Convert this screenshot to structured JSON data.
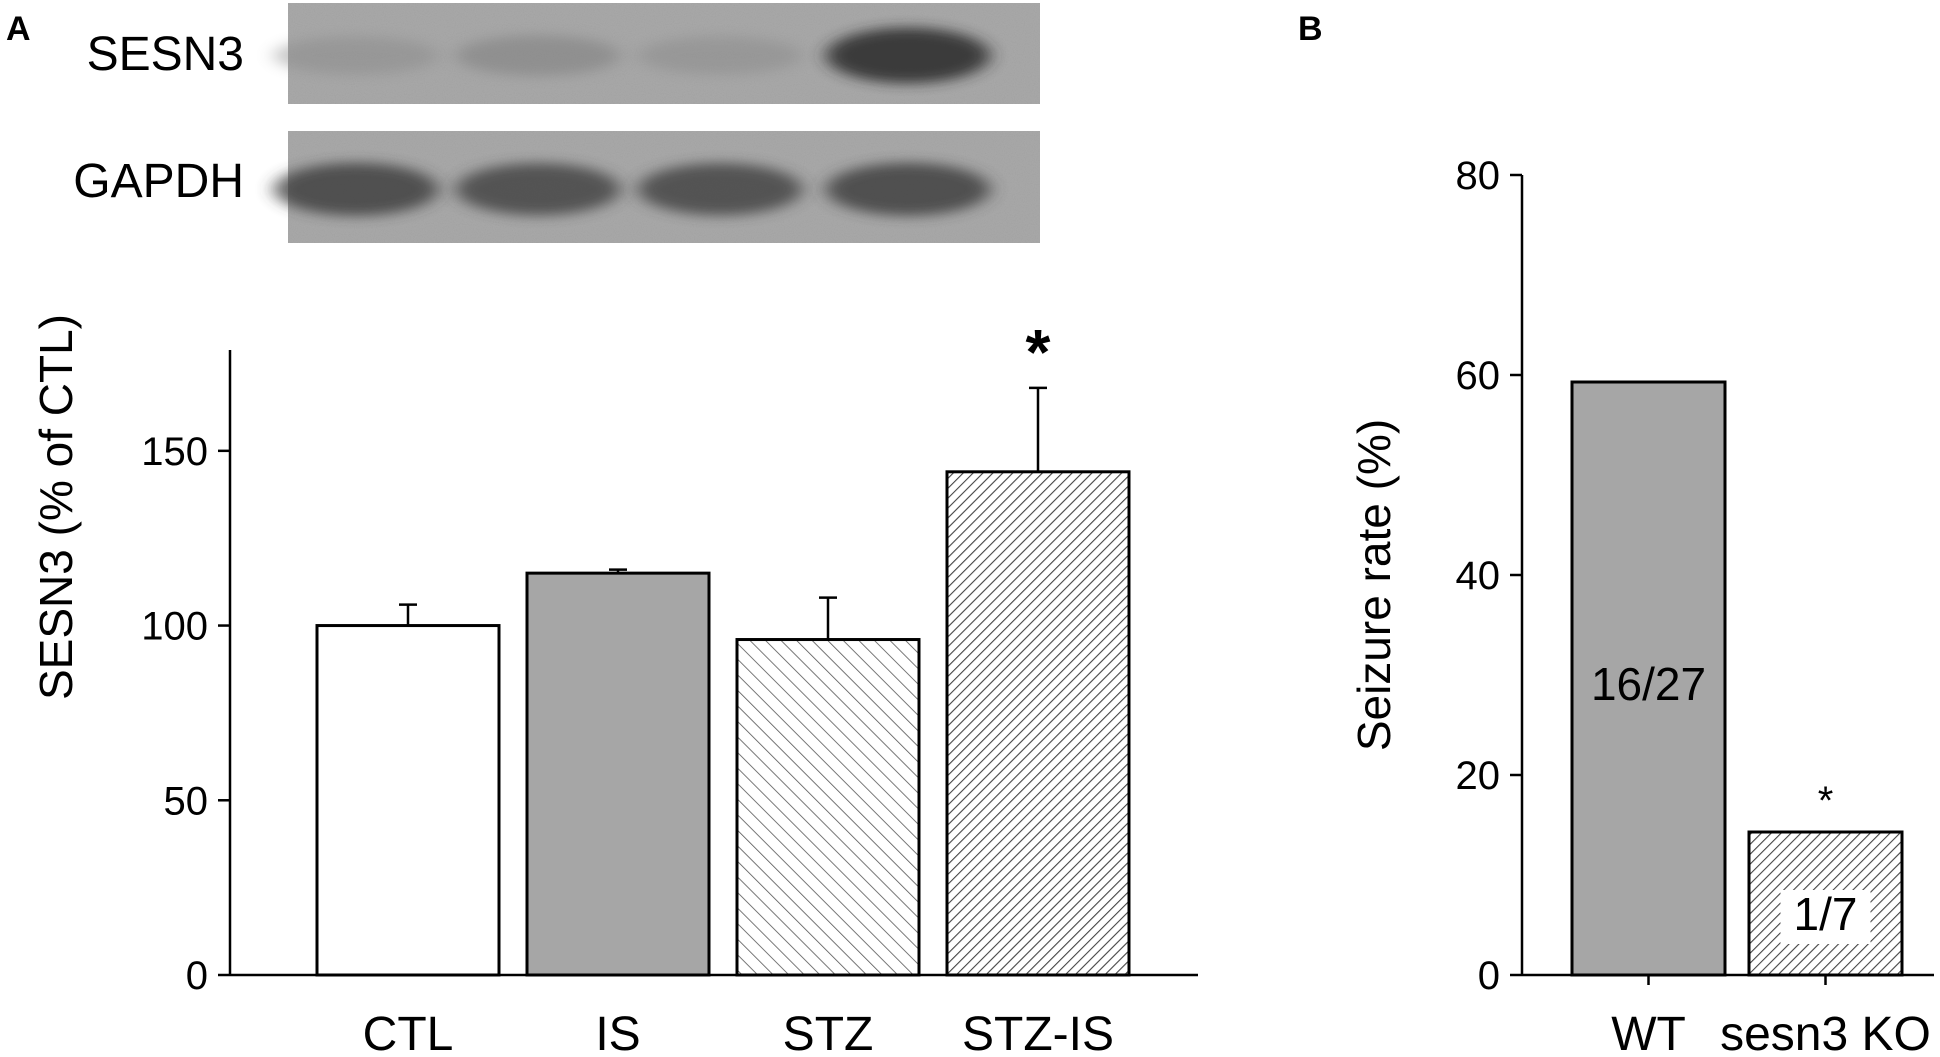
{
  "panel_a": {
    "letter": "A",
    "blot": {
      "rows": [
        {
          "label": "SESN3",
          "band_intensity": [
            0.22,
            0.3,
            0.22,
            0.85
          ]
        },
        {
          "label": "GAPDH",
          "band_intensity": [
            0.75,
            0.72,
            0.72,
            0.75
          ]
        }
      ]
    }
  },
  "panel_b": {
    "letter": "B"
  },
  "chart_data": [
    {
      "type": "bar",
      "categories": [
        "CTL",
        "IS",
        "STZ",
        "STZ-IS"
      ],
      "values": [
        100,
        115,
        96,
        144
      ],
      "errors": [
        6,
        1,
        12,
        24
      ],
      "fills": [
        "white",
        "gray",
        "sparse-hatch",
        "dense-hatch"
      ],
      "significance": [
        "",
        "",
        "",
        "*"
      ],
      "title": "",
      "xlabel": "",
      "ylabel": "SESN3 (% of CTL)",
      "ylim": [
        0,
        180
      ],
      "yticks": [
        0,
        50,
        100,
        150
      ],
      "grid": false
    },
    {
      "type": "bar",
      "categories": [
        "WT",
        "sesn3 KO"
      ],
      "values": [
        59.3,
        14.3
      ],
      "bar_labels": [
        "16/27",
        "1/7"
      ],
      "fills": [
        "gray",
        "dense-hatch"
      ],
      "significance": [
        "",
        "*"
      ],
      "title": "",
      "xlabel": "",
      "ylabel": "Seizure rate (%)",
      "ylim": [
        0,
        80
      ],
      "yticks": [
        0,
        20,
        40,
        60,
        80
      ],
      "grid": false
    }
  ],
  "colors": {
    "axis": "#000000",
    "bar_gray": "#a6a6a6",
    "blot_background": "#a9a9a9",
    "hatch_line": "#555555"
  }
}
